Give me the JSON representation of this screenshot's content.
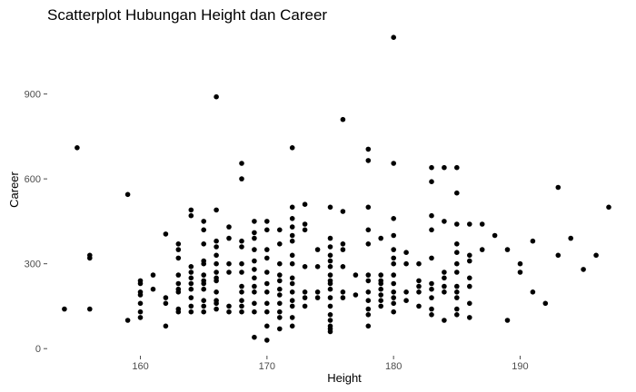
{
  "chart_data": {
    "type": "scatter",
    "title": "Scatterplot Hubungan Height dan Career",
    "xlabel": "Height",
    "ylabel": "Career",
    "xlim": [
      153,
      197
    ],
    "ylim": [
      -25,
      1120
    ],
    "xticks": [
      160,
      170,
      180,
      190
    ],
    "yticks": [
      0,
      300,
      600,
      900
    ],
    "grid": false,
    "legend": "none",
    "point_color": "#000000",
    "points": [
      [
        154,
        140
      ],
      [
        155,
        710
      ],
      [
        156,
        330
      ],
      [
        156,
        320
      ],
      [
        156,
        140
      ],
      [
        159,
        545
      ],
      [
        159,
        100
      ],
      [
        160,
        240
      ],
      [
        160,
        230
      ],
      [
        160,
        200
      ],
      [
        160,
        190
      ],
      [
        160,
        160
      ],
      [
        160,
        130
      ],
      [
        160,
        110
      ],
      [
        161,
        260
      ],
      [
        161,
        210
      ],
      [
        162,
        405
      ],
      [
        162,
        180
      ],
      [
        162,
        160
      ],
      [
        162,
        80
      ],
      [
        163,
        370
      ],
      [
        163,
        350
      ],
      [
        163,
        320
      ],
      [
        163,
        260
      ],
      [
        163,
        230
      ],
      [
        163,
        210
      ],
      [
        163,
        200
      ],
      [
        163,
        140
      ],
      [
        163,
        130
      ],
      [
        164,
        490
      ],
      [
        164,
        470
      ],
      [
        164,
        290
      ],
      [
        164,
        270
      ],
      [
        164,
        250
      ],
      [
        164,
        230
      ],
      [
        164,
        210
      ],
      [
        164,
        180
      ],
      [
        164,
        150
      ],
      [
        164,
        130
      ],
      [
        165,
        450
      ],
      [
        165,
        420
      ],
      [
        165,
        370
      ],
      [
        165,
        310
      ],
      [
        165,
        300
      ],
      [
        165,
        260
      ],
      [
        165,
        240
      ],
      [
        165,
        230
      ],
      [
        165,
        210
      ],
      [
        165,
        170
      ],
      [
        165,
        150
      ],
      [
        165,
        130
      ],
      [
        166,
        890
      ],
      [
        166,
        490
      ],
      [
        166,
        380
      ],
      [
        166,
        360
      ],
      [
        166,
        330
      ],
      [
        166,
        300
      ],
      [
        166,
        270
      ],
      [
        166,
        250
      ],
      [
        166,
        240
      ],
      [
        166,
        200
      ],
      [
        166,
        170
      ],
      [
        166,
        160
      ],
      [
        166,
        140
      ],
      [
        167,
        430
      ],
      [
        167,
        390
      ],
      [
        167,
        300
      ],
      [
        167,
        270
      ],
      [
        167,
        150
      ],
      [
        167,
        130
      ],
      [
        168,
        655
      ],
      [
        168,
        600
      ],
      [
        168,
        380
      ],
      [
        168,
        360
      ],
      [
        168,
        300
      ],
      [
        168,
        270
      ],
      [
        168,
        220
      ],
      [
        168,
        200
      ],
      [
        168,
        170
      ],
      [
        168,
        150
      ],
      [
        168,
        130
      ],
      [
        169,
        450
      ],
      [
        169,
        410
      ],
      [
        169,
        390
      ],
      [
        169,
        350
      ],
      [
        169,
        310
      ],
      [
        169,
        280
      ],
      [
        169,
        250
      ],
      [
        169,
        220
      ],
      [
        169,
        200
      ],
      [
        169,
        160
      ],
      [
        169,
        130
      ],
      [
        169,
        40
      ],
      [
        170,
        450
      ],
      [
        170,
        420
      ],
      [
        170,
        350
      ],
      [
        170,
        320
      ],
      [
        170,
        270
      ],
      [
        170,
        230
      ],
      [
        170,
        200
      ],
      [
        170,
        160
      ],
      [
        170,
        130
      ],
      [
        170,
        80
      ],
      [
        170,
        30
      ],
      [
        171,
        420
      ],
      [
        171,
        370
      ],
      [
        171,
        300
      ],
      [
        171,
        260
      ],
      [
        171,
        240
      ],
      [
        171,
        210
      ],
      [
        171,
        190
      ],
      [
        171,
        160
      ],
      [
        171,
        130
      ],
      [
        171,
        110
      ],
      [
        171,
        70
      ],
      [
        172,
        710
      ],
      [
        172,
        500
      ],
      [
        172,
        460
      ],
      [
        172,
        430
      ],
      [
        172,
        400
      ],
      [
        172,
        380
      ],
      [
        172,
        330
      ],
      [
        172,
        300
      ],
      [
        172,
        250
      ],
      [
        172,
        230
      ],
      [
        172,
        200
      ],
      [
        172,
        170
      ],
      [
        172,
        150
      ],
      [
        172,
        110
      ],
      [
        172,
        80
      ],
      [
        173,
        510
      ],
      [
        173,
        440
      ],
      [
        173,
        420
      ],
      [
        173,
        290
      ],
      [
        173,
        200
      ],
      [
        173,
        180
      ],
      [
        173,
        150
      ],
      [
        174,
        350
      ],
      [
        174,
        290
      ],
      [
        174,
        200
      ],
      [
        174,
        180
      ],
      [
        175,
        500
      ],
      [
        175,
        390
      ],
      [
        175,
        360
      ],
      [
        175,
        330
      ],
      [
        175,
        310
      ],
      [
        175,
        290
      ],
      [
        175,
        260
      ],
      [
        175,
        240
      ],
      [
        175,
        230
      ],
      [
        175,
        210
      ],
      [
        175,
        180
      ],
      [
        175,
        150
      ],
      [
        175,
        120
      ],
      [
        175,
        100
      ],
      [
        175,
        80
      ],
      [
        175,
        70
      ],
      [
        175,
        60
      ],
      [
        176,
        810
      ],
      [
        176,
        485
      ],
      [
        176,
        370
      ],
      [
        176,
        350
      ],
      [
        176,
        290
      ],
      [
        176,
        200
      ],
      [
        176,
        180
      ],
      [
        177,
        260
      ],
      [
        177,
        190
      ],
      [
        178,
        705
      ],
      [
        178,
        665
      ],
      [
        178,
        500
      ],
      [
        178,
        420
      ],
      [
        178,
        370
      ],
      [
        178,
        260
      ],
      [
        178,
        240
      ],
      [
        178,
        200
      ],
      [
        178,
        170
      ],
      [
        178,
        140
      ],
      [
        178,
        120
      ],
      [
        178,
        80
      ],
      [
        179,
        390
      ],
      [
        179,
        260
      ],
      [
        179,
        240
      ],
      [
        179,
        230
      ],
      [
        179,
        210
      ],
      [
        179,
        190
      ],
      [
        179,
        170
      ],
      [
        179,
        150
      ],
      [
        180,
        1100
      ],
      [
        180,
        655
      ],
      [
        180,
        460
      ],
      [
        180,
        400
      ],
      [
        180,
        350
      ],
      [
        180,
        320
      ],
      [
        180,
        300
      ],
      [
        180,
        260
      ],
      [
        180,
        230
      ],
      [
        180,
        200
      ],
      [
        180,
        180
      ],
      [
        180,
        160
      ],
      [
        180,
        130
      ],
      [
        181,
        340
      ],
      [
        181,
        300
      ],
      [
        181,
        200
      ],
      [
        181,
        170
      ],
      [
        182,
        300
      ],
      [
        182,
        240
      ],
      [
        182,
        220
      ],
      [
        182,
        200
      ],
      [
        182,
        150
      ],
      [
        183,
        640
      ],
      [
        183,
        590
      ],
      [
        183,
        470
      ],
      [
        183,
        420
      ],
      [
        183,
        320
      ],
      [
        183,
        230
      ],
      [
        183,
        210
      ],
      [
        183,
        180
      ],
      [
        183,
        140
      ],
      [
        183,
        120
      ],
      [
        184,
        640
      ],
      [
        184,
        450
      ],
      [
        184,
        270
      ],
      [
        184,
        250
      ],
      [
        184,
        220
      ],
      [
        184,
        200
      ],
      [
        184,
        100
      ],
      [
        185,
        640
      ],
      [
        185,
        550
      ],
      [
        185,
        440
      ],
      [
        185,
        370
      ],
      [
        185,
        340
      ],
      [
        185,
        300
      ],
      [
        185,
        270
      ],
      [
        185,
        220
      ],
      [
        185,
        200
      ],
      [
        185,
        180
      ],
      [
        185,
        140
      ],
      [
        185,
        120
      ],
      [
        186,
        440
      ],
      [
        186,
        330
      ],
      [
        186,
        310
      ],
      [
        186,
        250
      ],
      [
        186,
        220
      ],
      [
        186,
        160
      ],
      [
        186,
        110
      ],
      [
        187,
        440
      ],
      [
        187,
        350
      ],
      [
        188,
        400
      ],
      [
        189,
        350
      ],
      [
        189,
        100
      ],
      [
        190,
        300
      ],
      [
        190,
        270
      ],
      [
        191,
        380
      ],
      [
        191,
        200
      ],
      [
        192,
        160
      ],
      [
        193,
        570
      ],
      [
        193,
        330
      ],
      [
        194,
        390
      ],
      [
        195,
        280
      ],
      [
        196,
        330
      ],
      [
        197,
        500
      ]
    ]
  }
}
